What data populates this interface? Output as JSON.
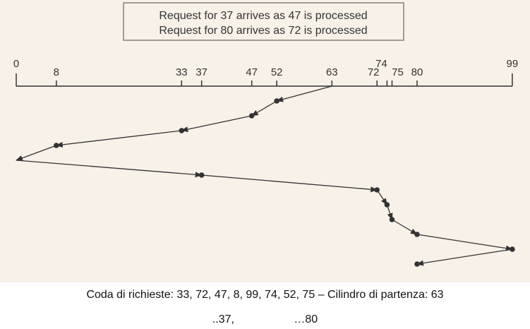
{
  "legend": {
    "line_1": "Request for 37 arrives as 47 is processed",
    "line_2": "Request for 80 arrives as 72 is processed"
  },
  "axis": {
    "ticks": [
      {
        "value": 0,
        "label": "0"
      },
      {
        "value": 8,
        "label": "8"
      },
      {
        "value": 33,
        "label": "33"
      },
      {
        "value": 37,
        "label": "37"
      },
      {
        "value": 47,
        "label": "47"
      },
      {
        "value": 52,
        "label": "52"
      },
      {
        "value": 63,
        "label": "63"
      },
      {
        "value": 72,
        "label": "72"
      },
      {
        "value": 74,
        "label": "74"
      },
      {
        "value": 75,
        "label": "75"
      },
      {
        "value": 80,
        "label": "80"
      },
      {
        "value": 99,
        "label": "99"
      }
    ]
  },
  "path": [
    63,
    52,
    47,
    33,
    8,
    0,
    37,
    72,
    74,
    75,
    80,
    99,
    80
  ],
  "captions": {
    "line_1": "Coda di richieste: 33, 72, 47, 8, 99, 74, 52, 75 – Cilindro di partenza: 63",
    "line_2": "..37,                   …80"
  },
  "colors": {
    "panel_background": "#f7f1e8",
    "ink": "#333333",
    "legend_border": "#8a7f74"
  }
}
